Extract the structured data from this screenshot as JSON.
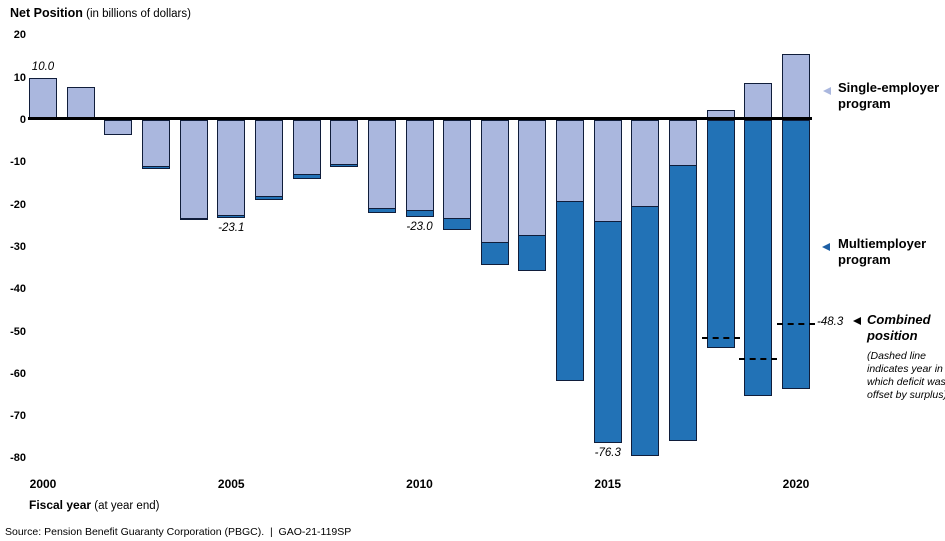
{
  "title": {
    "main": "Net Position",
    "sub": " (in billions of dollars)"
  },
  "y_axis": {
    "ticks": [
      20,
      10,
      0,
      -10,
      -20,
      -30,
      -40,
      -50,
      -60,
      -70,
      -80
    ]
  },
  "x_axis": {
    "label_main": "Fiscal year",
    "label_sub": " (at year end)",
    "tick_years": [
      2000,
      2005,
      2010,
      2015,
      2020
    ]
  },
  "legend": {
    "single": {
      "label": "Single-employer program",
      "arrow_color": "#aab7de"
    },
    "multi": {
      "label": "Multiemployer program",
      "arrow_color": "#1d5fa5"
    },
    "combined": {
      "label": "Combined position",
      "arrow_color": "#000000",
      "note": "(Dashed line indicates year in which deficit was offset by surplus)"
    }
  },
  "source": "Source: Pension Benefit Guaranty Corporation (PBGC).  |  GAO-21-119SP",
  "colors": {
    "single_fill": "#aab7de",
    "multi_fill": "#2272b6",
    "bar_border": "#101d3a",
    "zero_line": "#000000"
  },
  "chart_data": {
    "type": "bar",
    "stacked": true,
    "title": "Net Position (in billions of dollars)",
    "xlabel": "Fiscal year (at year end)",
    "ylabel": "Net position (billions of dollars)",
    "ylim": [
      -80,
      20
    ],
    "ytick_step": 10,
    "grid": false,
    "legend_position": "right",
    "x": [
      2000,
      2001,
      2002,
      2003,
      2004,
      2005,
      2006,
      2007,
      2008,
      2009,
      2010,
      2011,
      2012,
      2013,
      2014,
      2015,
      2016,
      2017,
      2018,
      2019,
      2020
    ],
    "series": [
      {
        "name": "Single-employer program",
        "color": "#aab7de",
        "values": [
          10.0,
          7.7,
          -3.6,
          -11.2,
          -23.3,
          -22.8,
          -18.1,
          -13.1,
          -10.7,
          -21.1,
          -21.6,
          -23.3,
          -29.1,
          -27.4,
          -19.3,
          -24.1,
          -20.6,
          -10.9,
          2.4,
          8.7,
          15.5
        ]
      },
      {
        "name": "Multiemployer program",
        "color": "#2272b6",
        "values": [
          0.0,
          0.0,
          0.0,
          -0.3,
          -0.2,
          -0.3,
          -0.7,
          -0.9,
          -0.5,
          -0.9,
          -1.4,
          -2.8,
          -5.2,
          -8.3,
          -42.4,
          -52.3,
          -58.8,
          -65.1,
          -53.9,
          -65.2,
          -63.7
        ]
      }
    ],
    "combined_dashed": [
      {
        "year": 2018,
        "value": -51.5
      },
      {
        "year": 2019,
        "value": -56.5
      },
      {
        "year": 2020,
        "value": -48.3
      }
    ],
    "annotations": [
      {
        "year": 2000,
        "text": "10.0",
        "position": "above"
      },
      {
        "year": 2005,
        "text": "-23.1",
        "position": "below"
      },
      {
        "year": 2010,
        "text": "-23.0",
        "position": "below"
      },
      {
        "year": 2015,
        "text": "-76.3",
        "position": "below"
      },
      {
        "year": 2020,
        "text": "-48.3",
        "position": "right-of-dash"
      }
    ]
  }
}
